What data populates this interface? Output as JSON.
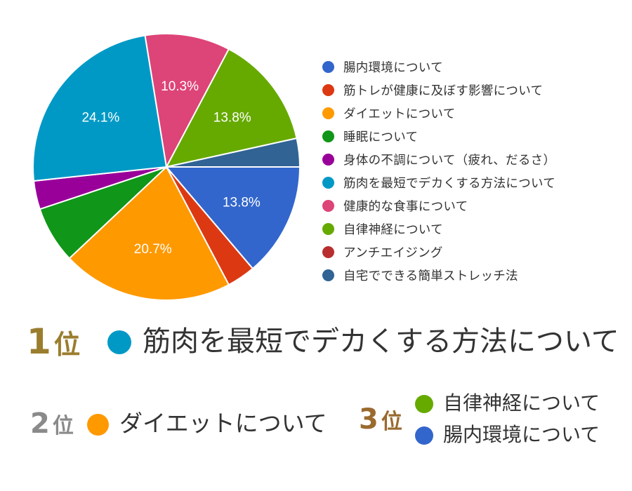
{
  "chart_data": {
    "type": "pie",
    "slices": [
      {
        "label": "腸内環境について",
        "value": 13.8,
        "color": "#3366cc",
        "display": "13.8%"
      },
      {
        "label": "筋トレが健康に及ぼす影響について",
        "value": 3.45,
        "color": "#dc3912",
        "display": ""
      },
      {
        "label": "ダイエットについて",
        "value": 20.7,
        "color": "#ff9900",
        "display": "20.7%"
      },
      {
        "label": "睡眠について",
        "value": 6.9,
        "color": "#109618",
        "display": ""
      },
      {
        "label": "身体の不調について（疲れ、だるさ）",
        "value": 3.45,
        "color": "#990099",
        "display": ""
      },
      {
        "label": "筋肉を最短でデカくする方法について",
        "value": 24.1,
        "color": "#0099c6",
        "display": "24.1%"
      },
      {
        "label": "健康的な食事について",
        "value": 10.3,
        "color": "#dd4477",
        "display": "10.3%"
      },
      {
        "label": "自律神経について",
        "value": 13.8,
        "color": "#66aa00",
        "display": "13.8%"
      },
      {
        "label": "アンチエイジング",
        "value": 0,
        "color": "#b82e2e",
        "display": ""
      },
      {
        "label": "自宅でできる簡単ストレッチ法",
        "value": 3.45,
        "color": "#316395",
        "display": ""
      }
    ]
  },
  "ranking": {
    "first": {
      "num": "1",
      "suffix": "位",
      "item": "筋肉を最短でデカくする方法について",
      "color": "#0099c6"
    },
    "second": {
      "num": "2",
      "suffix": "位",
      "item": "ダイエットについて",
      "color": "#ff9900"
    },
    "third": {
      "num": "3",
      "suffix": "位",
      "items": [
        {
          "item": "自律神経について",
          "color": "#66aa00"
        },
        {
          "item": "腸内環境について",
          "color": "#3366cc"
        }
      ]
    }
  }
}
